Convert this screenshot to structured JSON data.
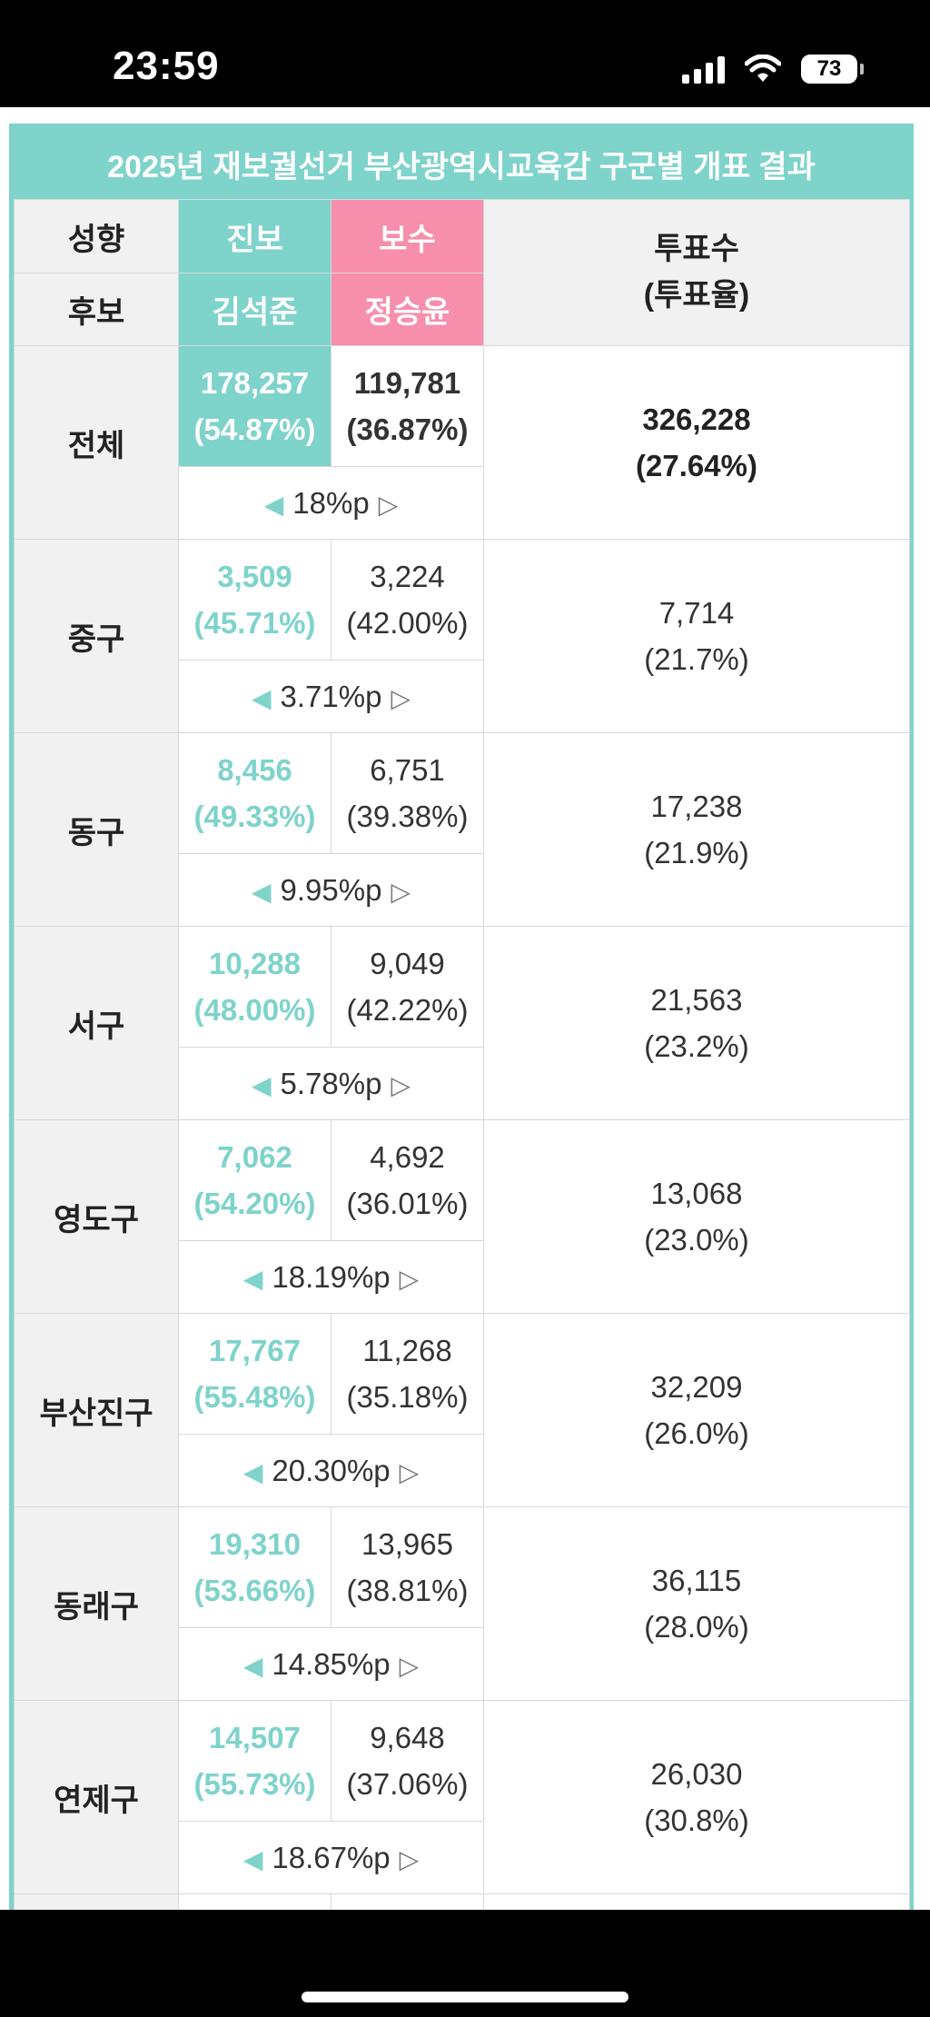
{
  "status": {
    "time": "23:59",
    "battery": "73"
  },
  "title": "2025년 재보궐선거 부산광역시교육감 구군별 개표 결과",
  "headers": {
    "tendency_label": "성향",
    "candidate_label": "후보",
    "progressive": "진보",
    "conservative": "보수",
    "progressive_name": "김석준",
    "conservative_name": "정승윤",
    "votes_label_1": "투표수",
    "votes_label_2": "(투표율)"
  },
  "rows": [
    {
      "region": "전체",
      "prog_votes": "178,257",
      "prog_pct": "(54.87%)",
      "cons_votes": "119,781",
      "cons_pct": "(36.87%)",
      "margin": "18%p",
      "total": "326,228",
      "turnout": "(27.64%)"
    },
    {
      "region": "중구",
      "prog_votes": "3,509",
      "prog_pct": "(45.71%)",
      "cons_votes": "3,224",
      "cons_pct": "(42.00%)",
      "margin": "3.71%p",
      "total": "7,714",
      "turnout": "(21.7%)"
    },
    {
      "region": "동구",
      "prog_votes": "8,456",
      "prog_pct": "(49.33%)",
      "cons_votes": "6,751",
      "cons_pct": "(39.38%)",
      "margin": "9.95%p",
      "total": "17,238",
      "turnout": "(21.9%)"
    },
    {
      "region": "서구",
      "prog_votes": "10,288",
      "prog_pct": "(48.00%)",
      "cons_votes": "9,049",
      "cons_pct": "(42.22%)",
      "margin": "5.78%p",
      "total": "21,563",
      "turnout": "(23.2%)"
    },
    {
      "region": "영도구",
      "prog_votes": "7,062",
      "prog_pct": "(54.20%)",
      "cons_votes": "4,692",
      "cons_pct": "(36.01%)",
      "margin": "18.19%p",
      "total": "13,068",
      "turnout": "(23.0%)"
    },
    {
      "region": "부산진구",
      "prog_votes": "17,767",
      "prog_pct": "(55.48%)",
      "cons_votes": "11,268",
      "cons_pct": "(35.18%)",
      "margin": "20.30%p",
      "total": "32,209",
      "turnout": "(26.0%)"
    },
    {
      "region": "동래구",
      "prog_votes": "19,310",
      "prog_pct": "(53.66%)",
      "cons_votes": "13,965",
      "cons_pct": "(38.81%)",
      "margin": "14.85%p",
      "total": "36,115",
      "turnout": "(28.0%)"
    },
    {
      "region": "연제구",
      "prog_votes": "14,507",
      "prog_pct": "(55.73%)",
      "cons_votes": "9,648",
      "cons_pct": "(37.06%)",
      "margin": "18.67%p",
      "total": "26,030",
      "turnout": "(30.8%)"
    }
  ],
  "colors": {
    "progressive": "#7ed3cb",
    "conservative": "#f68eac",
    "label_bg": "#f1f1f1"
  }
}
